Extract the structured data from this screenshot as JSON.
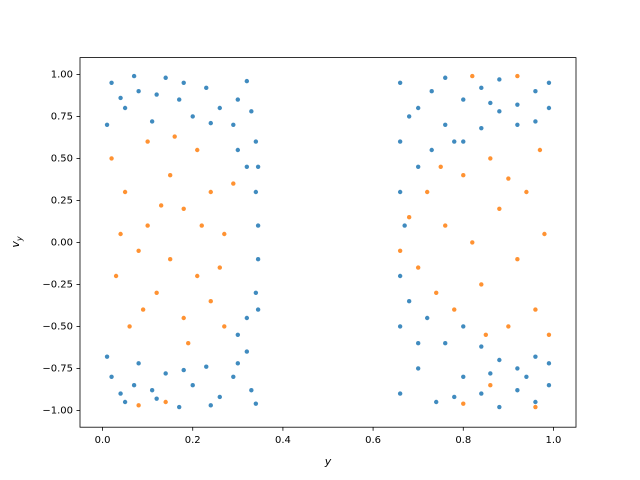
{
  "chart_data": {
    "type": "scatter",
    "xlabel": "y",
    "ylabel": "v",
    "ylabel_sub": "y",
    "xlim": [
      -0.05,
      1.05
    ],
    "ylim": [
      -1.1,
      1.1
    ],
    "xticks": [
      {
        "value": 0,
        "label": "0.0"
      },
      {
        "value": 0.2,
        "label": "0.2"
      },
      {
        "value": 0.4,
        "label": "0.4"
      },
      {
        "value": 0.6,
        "label": "0.6"
      },
      {
        "value": 0.8,
        "label": "0.8"
      },
      {
        "value": 1,
        "label": "1.0"
      }
    ],
    "yticks": [
      {
        "value": -1,
        "label": "−1.00"
      },
      {
        "value": -0.75,
        "label": "−0.75"
      },
      {
        "value": -0.5,
        "label": "−0.50"
      },
      {
        "value": -0.25,
        "label": "−0.25"
      },
      {
        "value": 0,
        "label": "0.00"
      },
      {
        "value": 0.25,
        "label": "0.25"
      },
      {
        "value": 0.5,
        "label": "0.50"
      },
      {
        "value": 0.75,
        "label": "0.75"
      },
      {
        "value": 1,
        "label": "1.00"
      }
    ],
    "series": [
      {
        "color": "#1f77b4",
        "x": [
          0.02,
          0.05,
          0.08,
          0.11,
          0.14,
          0.17,
          0.2,
          0.23,
          0.26,
          0.29,
          0.32,
          0.34,
          0.01,
          0.07,
          0.12,
          0.18,
          0.24,
          0.3,
          0.33,
          0.04,
          0.02,
          0.05,
          0.08,
          0.11,
          0.14,
          0.17,
          0.2,
          0.23,
          0.26,
          0.29,
          0.32,
          0.34,
          0.01,
          0.07,
          0.12,
          0.18,
          0.24,
          0.3,
          0.33,
          0.04,
          0.34,
          0.345,
          0.345,
          0.34,
          0.32,
          0.32,
          0.3,
          0.3,
          0.345,
          0.345,
          0.66,
          0.66,
          0.66,
          0.67,
          0.7,
          0.7,
          0.73,
          0.73,
          0.76,
          0.76,
          0.8,
          0.8,
          0.84,
          0.84,
          0.88,
          0.88,
          0.92,
          0.92,
          0.96,
          0.96,
          0.99,
          0.99,
          0.68,
          0.78,
          0.86,
          0.66,
          0.66,
          0.66,
          0.68,
          0.7,
          0.72,
          0.74,
          0.76,
          0.8,
          0.8,
          0.84,
          0.84,
          0.88,
          0.88,
          0.92,
          0.92,
          0.96,
          0.96,
          0.99,
          0.99,
          0.7,
          0.78,
          0.86,
          0.94
        ],
        "values": [
          0.95,
          0.8,
          0.9,
          0.72,
          0.98,
          0.85,
          0.75,
          0.92,
          0.8,
          0.7,
          0.96,
          0.6,
          0.7,
          0.99,
          0.88,
          0.95,
          0.71,
          0.85,
          0.78,
          0.86,
          -0.8,
          -0.95,
          -0.72,
          -0.88,
          -0.78,
          -0.98,
          -0.85,
          -0.74,
          -0.92,
          -0.8,
          -0.65,
          -0.96,
          -0.68,
          -0.85,
          -0.93,
          -0.76,
          -0.97,
          -0.72,
          -0.88,
          -0.9,
          0.3,
          0.1,
          -0.1,
          -0.3,
          0.45,
          -0.45,
          0.55,
          -0.55,
          0.45,
          -0.4,
          0.95,
          0.6,
          0.3,
          0.1,
          0.8,
          0.45,
          0.9,
          0.55,
          0.7,
          0.98,
          0.85,
          0.6,
          0.92,
          0.68,
          0.78,
          0.97,
          0.82,
          0.7,
          0.9,
          0.72,
          0.8,
          0.95,
          0.75,
          0.6,
          0.83,
          -0.2,
          -0.5,
          -0.9,
          -0.35,
          -0.75,
          -0.45,
          -0.95,
          -0.6,
          -0.8,
          -0.5,
          -0.9,
          -0.62,
          -0.7,
          -0.98,
          -0.75,
          -0.88,
          -0.68,
          -0.95,
          -0.72,
          -0.85,
          -0.6,
          -0.92,
          -0.78,
          -0.8
        ]
      },
      {
        "color": "#ff7f0e",
        "x": [
          0.02,
          0.05,
          0.03,
          0.06,
          0.1,
          0.1,
          0.12,
          0.15,
          0.15,
          0.18,
          0.18,
          0.21,
          0.21,
          0.24,
          0.24,
          0.27,
          0.27,
          0.29,
          0.08,
          0.13,
          0.19,
          0.22,
          0.04,
          0.09,
          0.16,
          0.08,
          0.14,
          0.26,
          0.66,
          0.68,
          0.7,
          0.72,
          0.74,
          0.76,
          0.78,
          0.8,
          0.82,
          0.84,
          0.86,
          0.88,
          0.9,
          0.9,
          0.92,
          0.94,
          0.96,
          0.97,
          0.98,
          0.99,
          0.85,
          0.75,
          0.82,
          0.92,
          0.86,
          0.8,
          0.96
        ],
        "values": [
          0.5,
          0.3,
          -0.2,
          -0.5,
          0.6,
          0.1,
          -0.3,
          0.4,
          -0.1,
          0.2,
          -0.45,
          0.55,
          -0.2,
          0.3,
          -0.35,
          0.05,
          -0.5,
          0.35,
          -0.05,
          0.22,
          -0.6,
          0.1,
          0.05,
          -0.4,
          0.63,
          -0.97,
          -0.95,
          -0.15,
          -0.05,
          0.15,
          -0.15,
          0.3,
          -0.3,
          0.1,
          -0.4,
          0.4,
          0.0,
          -0.25,
          0.5,
          0.2,
          -0.5,
          0.38,
          -0.1,
          0.3,
          -0.4,
          0.55,
          0.05,
          -0.55,
          -0.55,
          0.45,
          0.99,
          0.99,
          -0.85,
          -0.96,
          -0.98
        ]
      }
    ]
  }
}
